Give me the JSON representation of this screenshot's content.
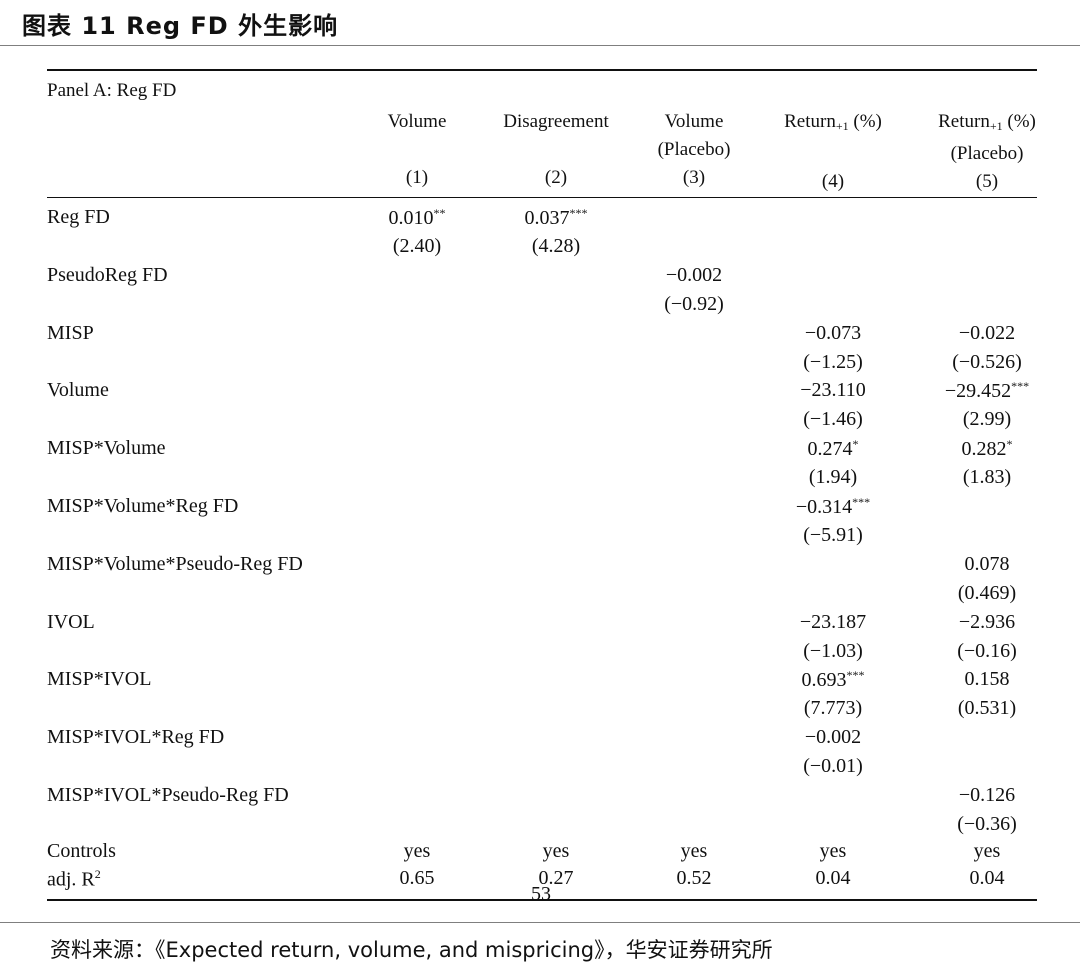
{
  "figure_title": "图表 11 Reg FD 外生影响",
  "panel_label": "Panel A: Reg FD",
  "columns": [
    {
      "line1": "Volume",
      "line2": "",
      "num": "(1)"
    },
    {
      "line1": "Disagreement",
      "line2": "",
      "num": "(2)"
    },
    {
      "line1": "Volume",
      "line2": "(Placebo)",
      "num": "(3)"
    },
    {
      "line1": "Return",
      "sub": "+1",
      "unit": " (%)",
      "line2": "",
      "num": "(4)"
    },
    {
      "line1": "Return",
      "sub": "+1",
      "unit": " (%)",
      "line2": "(Placebo)",
      "num": "(5)"
    }
  ],
  "rows": [
    {
      "label": "Reg FD",
      "cells": [
        {
          "v": "0.010",
          "s": "**",
          "t": "(2.40)"
        },
        {
          "v": "0.037",
          "s": "***",
          "t": "(4.28)"
        },
        {
          "v": "",
          "s": "",
          "t": ""
        },
        {
          "v": "",
          "s": "",
          "t": ""
        },
        {
          "v": "",
          "s": "",
          "t": ""
        }
      ]
    },
    {
      "label": "PseudoReg FD",
      "cells": [
        {
          "v": "",
          "s": "",
          "t": ""
        },
        {
          "v": "",
          "s": "",
          "t": ""
        },
        {
          "v": "−0.002",
          "s": "",
          "t": "(−0.92)"
        },
        {
          "v": "",
          "s": "",
          "t": ""
        },
        {
          "v": "",
          "s": "",
          "t": ""
        }
      ]
    },
    {
      "label": "MISP",
      "cells": [
        {
          "v": "",
          "s": "",
          "t": ""
        },
        {
          "v": "",
          "s": "",
          "t": ""
        },
        {
          "v": "",
          "s": "",
          "t": ""
        },
        {
          "v": "−0.073",
          "s": "",
          "t": "(−1.25)"
        },
        {
          "v": "−0.022",
          "s": "",
          "t": "(−0.526)"
        }
      ]
    },
    {
      "label": "Volume",
      "cells": [
        {
          "v": "",
          "s": "",
          "t": ""
        },
        {
          "v": "",
          "s": "",
          "t": ""
        },
        {
          "v": "",
          "s": "",
          "t": ""
        },
        {
          "v": "−23.110",
          "s": "",
          "t": "(−1.46)"
        },
        {
          "v": "−29.452",
          "s": "***",
          "t": "(2.99)"
        }
      ]
    },
    {
      "label": "MISP*Volume",
      "cells": [
        {
          "v": "",
          "s": "",
          "t": ""
        },
        {
          "v": "",
          "s": "",
          "t": ""
        },
        {
          "v": "",
          "s": "",
          "t": ""
        },
        {
          "v": "0.274",
          "s": "*",
          "t": "(1.94)"
        },
        {
          "v": "0.282",
          "s": "*",
          "t": "(1.83)"
        }
      ]
    },
    {
      "label": "MISP*Volume*Reg FD",
      "cells": [
        {
          "v": "",
          "s": "",
          "t": ""
        },
        {
          "v": "",
          "s": "",
          "t": ""
        },
        {
          "v": "",
          "s": "",
          "t": ""
        },
        {
          "v": "−0.314",
          "s": "***",
          "t": "(−5.91)"
        },
        {
          "v": "",
          "s": "",
          "t": ""
        }
      ]
    },
    {
      "label": "MISP*Volume*Pseudo-Reg FD",
      "cells": [
        {
          "v": "",
          "s": "",
          "t": ""
        },
        {
          "v": "",
          "s": "",
          "t": ""
        },
        {
          "v": "",
          "s": "",
          "t": ""
        },
        {
          "v": "",
          "s": "",
          "t": ""
        },
        {
          "v": "0.078",
          "s": "",
          "t": "(0.469)"
        }
      ]
    },
    {
      "label": "IVOL",
      "cells": [
        {
          "v": "",
          "s": "",
          "t": ""
        },
        {
          "v": "",
          "s": "",
          "t": ""
        },
        {
          "v": "",
          "s": "",
          "t": ""
        },
        {
          "v": "−23.187",
          "s": "",
          "t": "(−1.03)"
        },
        {
          "v": "−2.936",
          "s": "",
          "t": "(−0.16)"
        }
      ]
    },
    {
      "label": "MISP*IVOL",
      "cells": [
        {
          "v": "",
          "s": "",
          "t": ""
        },
        {
          "v": "",
          "s": "",
          "t": ""
        },
        {
          "v": "",
          "s": "",
          "t": ""
        },
        {
          "v": "0.693",
          "s": "***",
          "t": "(7.773)"
        },
        {
          "v": "0.158",
          "s": "",
          "t": "(0.531)"
        }
      ]
    },
    {
      "label": "MISP*IVOL*Reg FD",
      "cells": [
        {
          "v": "",
          "s": "",
          "t": ""
        },
        {
          "v": "",
          "s": "",
          "t": ""
        },
        {
          "v": "",
          "s": "",
          "t": ""
        },
        {
          "v": "−0.002",
          "s": "",
          "t": "(−0.01)"
        },
        {
          "v": "",
          "s": "",
          "t": ""
        }
      ]
    },
    {
      "label": "MISP*IVOL*Pseudo-Reg FD",
      "cells": [
        {
          "v": "",
          "s": "",
          "t": ""
        },
        {
          "v": "",
          "s": "",
          "t": ""
        },
        {
          "v": "",
          "s": "",
          "t": ""
        },
        {
          "v": "",
          "s": "",
          "t": ""
        },
        {
          "v": "−0.126",
          "s": "",
          "t": "(−0.36)"
        }
      ]
    }
  ],
  "footer_rows": [
    {
      "label": "Controls",
      "values": [
        "yes",
        "yes",
        "yes",
        "yes",
        "yes"
      ]
    },
    {
      "label": "adj. R",
      "label_sup": "2",
      "values": [
        "0.65",
        "0.27",
        "0.52",
        "0.04",
        "0.04"
      ]
    }
  ],
  "page_number": "53",
  "source": "资料来源：《Expected return, volume, and mispricing》，华安证券研究所"
}
